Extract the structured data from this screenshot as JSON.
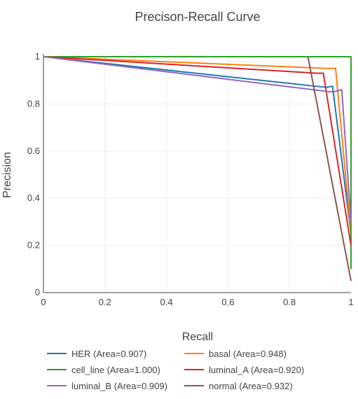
{
  "chart_data": {
    "type": "line",
    "title": "Precison-Recall Curve",
    "xlabel": "Recall",
    "ylabel": "Precision",
    "xlim": [
      0,
      1
    ],
    "ylim": [
      0,
      1
    ],
    "x_ticks": [
      "0",
      "0.2",
      "0.4",
      "0.6",
      "0.8",
      "1"
    ],
    "y_ticks": [
      "0",
      "0.2",
      "0.4",
      "0.6",
      "0.8",
      "1"
    ],
    "grid": true,
    "legend_position": "bottom",
    "series": [
      {
        "name": "HER (Area=0.907)",
        "color": "#1f77b4",
        "x": [
          0,
          0.92,
          0.94,
          1.0
        ],
        "y": [
          1.0,
          0.87,
          0.875,
          0.25
        ]
      },
      {
        "name": "basal (Area=0.948)",
        "color": "#ff7f0e",
        "x": [
          0,
          0.93,
          0.95,
          1.0
        ],
        "y": [
          1.0,
          0.95,
          0.951,
          0.25
        ]
      },
      {
        "name": "cell_line (Area=1.000)",
        "color": "#2ca02c",
        "x": [
          0,
          1.0,
          1.0
        ],
        "y": [
          1.0,
          1.0,
          0.1
        ]
      },
      {
        "name": "luminal_A (Area=0.920)",
        "color": "#d62728",
        "x": [
          0,
          0.89,
          0.91,
          1.0
        ],
        "y": [
          1.0,
          0.93,
          0.93,
          0.2
        ]
      },
      {
        "name": "luminal_B (Area=0.909)",
        "color": "#9467bd",
        "x": [
          0,
          0.94,
          0.97,
          1.0
        ],
        "y": [
          1.0,
          0.85,
          0.86,
          0.3
        ]
      },
      {
        "name": "normal (Area=0.932)",
        "color": "#8c564b",
        "x": [
          0.86,
          1.0
        ],
        "y": [
          1.0,
          0.05
        ]
      }
    ]
  }
}
